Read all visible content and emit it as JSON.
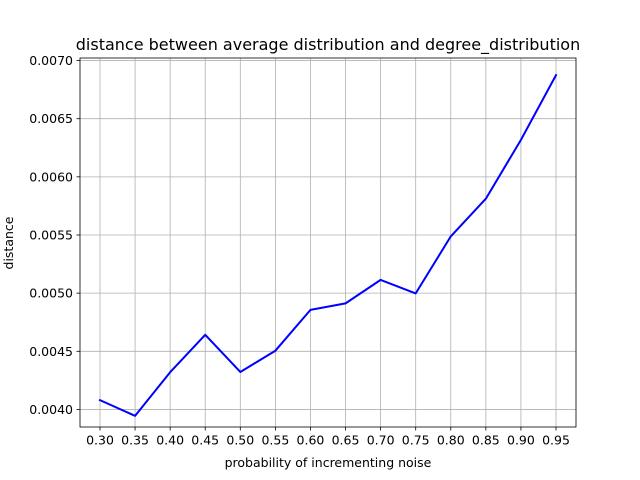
{
  "chart_data": {
    "type": "line",
    "title": "distance between average distribution and degree_distribution",
    "xlabel": "probability of incrementing noise",
    "ylabel": "distance",
    "x": [
      0.3,
      0.35,
      0.4,
      0.45,
      0.5,
      0.55,
      0.6,
      0.65,
      0.7,
      0.75,
      0.8,
      0.85,
      0.9,
      0.95
    ],
    "x_tick_labels": [
      "0.30",
      "0.35",
      "0.40",
      "0.45",
      "0.50",
      "0.55",
      "0.60",
      "0.65",
      "0.70",
      "0.75",
      "0.80",
      "0.85",
      "0.90",
      "0.95"
    ],
    "y_ticks": [
      0.004,
      0.0045,
      0.005,
      0.0055,
      0.006,
      0.0065,
      0.007
    ],
    "y_tick_labels": [
      "0.0040",
      "0.0045",
      "0.0050",
      "0.0055",
      "0.0060",
      "0.0065",
      "0.0070"
    ],
    "series": [
      {
        "values": [
          0.00408,
          0.003945,
          0.00432,
          0.004642,
          0.004322,
          0.004505,
          0.004856,
          0.004912,
          0.005114,
          0.004998,
          0.005488,
          0.005812,
          0.006318,
          0.006875
        ],
        "color": "#0000ff"
      }
    ],
    "xlim": [
      0.2715,
      0.9785
    ],
    "ylim": [
      0.003849,
      0.007022
    ],
    "grid": true,
    "legend": "none"
  }
}
